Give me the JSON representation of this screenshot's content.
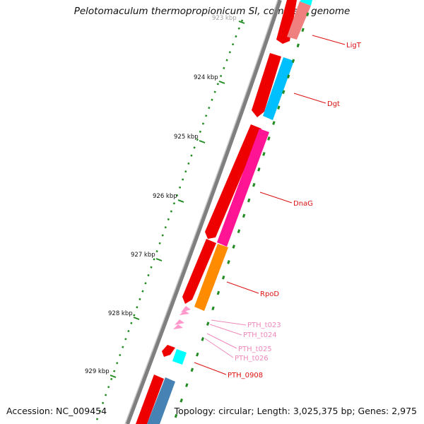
{
  "title": "Pelotomaculum thermopropionicum SI, complete genome",
  "footer": {
    "accession": "Accession: NC_009454",
    "topology": "Topology: circular; Length: 3,025,375 bp; Genes: 2,975"
  },
  "ticks": [
    {
      "label": "923 kbp"
    },
    {
      "label": "924 kbp"
    },
    {
      "label": "925 kbp"
    },
    {
      "label": "926 kbp"
    },
    {
      "label": "927 kbp"
    },
    {
      "label": "928 kbp"
    },
    {
      "label": "929 kbp"
    }
  ],
  "gene_labels": [
    {
      "text": "LigT",
      "color": "#dd1111"
    },
    {
      "text": "Dgt",
      "color": "#dd1111"
    },
    {
      "text": "DnaG",
      "color": "#dd1111"
    },
    {
      "text": "RpoD",
      "color": "#dd1111"
    },
    {
      "text": "PTH_t023",
      "color": "#ee88bb"
    },
    {
      "text": "PTH_t024",
      "color": "#ee88bb"
    },
    {
      "text": "PTH_t025",
      "color": "#ee88bb"
    },
    {
      "text": "PTH_t026",
      "color": "#ee88bb"
    },
    {
      "text": "PTH_0908",
      "color": "#dd1111"
    }
  ],
  "colors": {
    "backbone": "#7f7f7f",
    "forward_cds": "#ee0000",
    "ligt": "#f08080",
    "dgt": "#00bfff",
    "dnag": "#ff1493",
    "rpod": "#ff8c00",
    "trna": "#ff99cc",
    "cyan": "#00ffff",
    "steelblue": "#4682b4",
    "gc_ticks": "#228b22"
  }
}
